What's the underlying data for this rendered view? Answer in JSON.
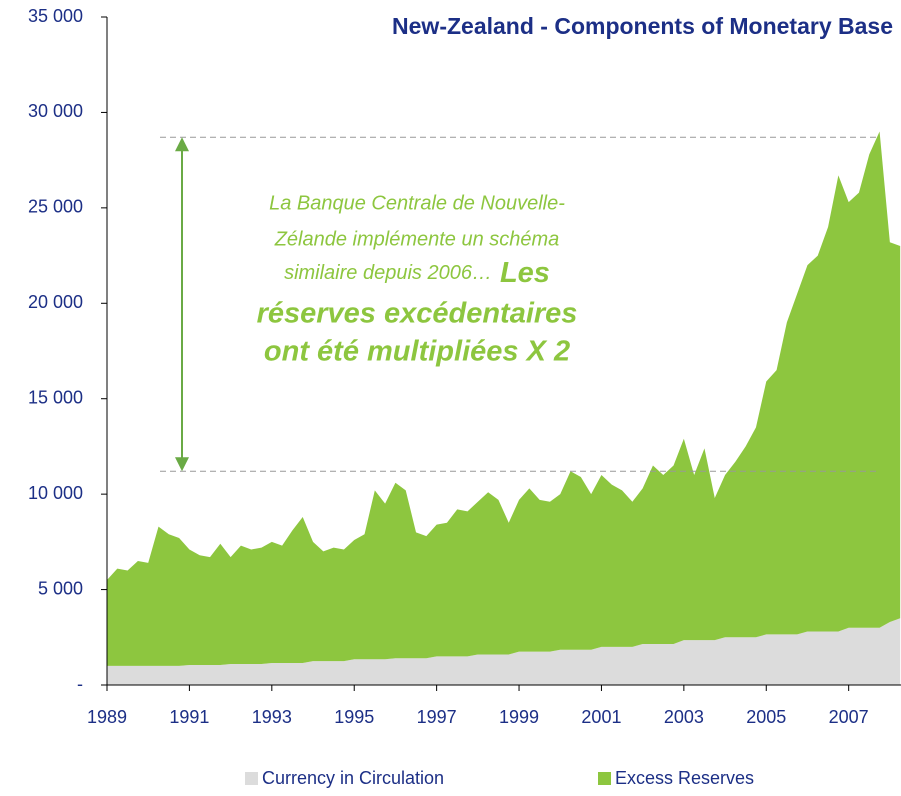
{
  "chart_data": {
    "type": "stacked_area",
    "title": "New-Zealand - Components of Monetary Base",
    "x": [
      1989,
      1989.25,
      1989.5,
      1989.75,
      1990,
      1990.25,
      1990.5,
      1990.75,
      1991,
      1991.25,
      1991.5,
      1991.75,
      1992,
      1992.25,
      1992.5,
      1992.75,
      1993,
      1993.25,
      1993.5,
      1993.75,
      1994,
      1994.25,
      1994.5,
      1994.75,
      1995,
      1995.25,
      1995.5,
      1995.75,
      1996,
      1996.25,
      1996.5,
      1996.75,
      1997,
      1997.25,
      1997.5,
      1997.75,
      1998,
      1998.25,
      1998.5,
      1998.75,
      1999,
      1999.25,
      1999.5,
      1999.75,
      2000,
      2000.25,
      2000.5,
      2000.75,
      2001,
      2001.25,
      2001.5,
      2001.75,
      2002,
      2002.25,
      2002.5,
      2002.75,
      2003,
      2003.25,
      2003.5,
      2003.75,
      2004,
      2004.25,
      2004.5,
      2004.75,
      2005,
      2005.25,
      2005.5,
      2005.75,
      2006,
      2006.25,
      2006.5,
      2006.75,
      2007,
      2007.25,
      2007.5,
      2007.75,
      2008,
      2008.25
    ],
    "series": [
      {
        "name": "Currency in Circulation",
        "color": "#dcdcdc",
        "values": [
          1000,
          1000,
          1000,
          1000,
          1000,
          1000,
          1000,
          1000,
          1050,
          1050,
          1050,
          1050,
          1100,
          1100,
          1100,
          1100,
          1150,
          1150,
          1150,
          1150,
          1250,
          1250,
          1250,
          1250,
          1350,
          1350,
          1350,
          1350,
          1400,
          1400,
          1400,
          1400,
          1500,
          1500,
          1500,
          1500,
          1600,
          1600,
          1600,
          1600,
          1750,
          1750,
          1750,
          1750,
          1850,
          1850,
          1850,
          1850,
          2000,
          2000,
          2000,
          2000,
          2150,
          2150,
          2150,
          2150,
          2350,
          2350,
          2350,
          2350,
          2500,
          2500,
          2500,
          2500,
          2650,
          2650,
          2650,
          2650,
          2800,
          2800,
          2800,
          2800,
          3000,
          3000,
          3000,
          3000,
          3300,
          3500
        ]
      },
      {
        "name": "Excess Reserves",
        "color": "#8dc63f",
        "values": [
          4500,
          5100,
          5000,
          5500,
          5400,
          7300,
          6900,
          6700,
          6050,
          5750,
          5650,
          6350,
          5600,
          6200,
          6000,
          6100,
          6350,
          6150,
          6950,
          7650,
          6250,
          5750,
          5950,
          5850,
          6250,
          6550,
          8850,
          8150,
          9200,
          8800,
          6600,
          6400,
          6900,
          7000,
          7700,
          7600,
          8000,
          8500,
          8100,
          6900,
          7950,
          8550,
          7950,
          7850,
          8150,
          9350,
          9050,
          8150,
          9000,
          8500,
          8200,
          7600,
          8150,
          9350,
          8850,
          9350,
          10550,
          8650,
          10050,
          7450,
          8500,
          9200,
          10000,
          11000,
          13250,
          13850,
          16350,
          17850,
          19200,
          19700,
          21200,
          23900,
          22300,
          22800,
          24800,
          26000,
          19900,
          19500
        ]
      }
    ],
    "xlim": [
      1989,
      2008.27
    ],
    "xticks": [
      1989,
      1991,
      1993,
      1995,
      1997,
      1999,
      2001,
      2003,
      2005,
      2007
    ],
    "ylim": [
      0,
      35000
    ],
    "yticks": [
      {
        "value": 0,
        "label": "-"
      },
      {
        "value": 5000,
        "label": "5 000"
      },
      {
        "value": 10000,
        "label": "10 000"
      },
      {
        "value": 15000,
        "label": "15 000"
      },
      {
        "value": 20000,
        "label": "20 000"
      },
      {
        "value": 25000,
        "label": "25 000"
      },
      {
        "value": 30000,
        "label": "30 000"
      },
      {
        "value": 35000,
        "label": "35 000"
      }
    ],
    "reference_lines": [
      28700,
      11200
    ],
    "annotation": {
      "text": [
        "La Banque Centrale de Nouvelle-",
        "Zélande implémente un schéma",
        "similaire depuis 2006…"
      ],
      "highlight": [
        "Les",
        "réserves excédentaires",
        "ont été multipliées X 2"
      ]
    }
  }
}
